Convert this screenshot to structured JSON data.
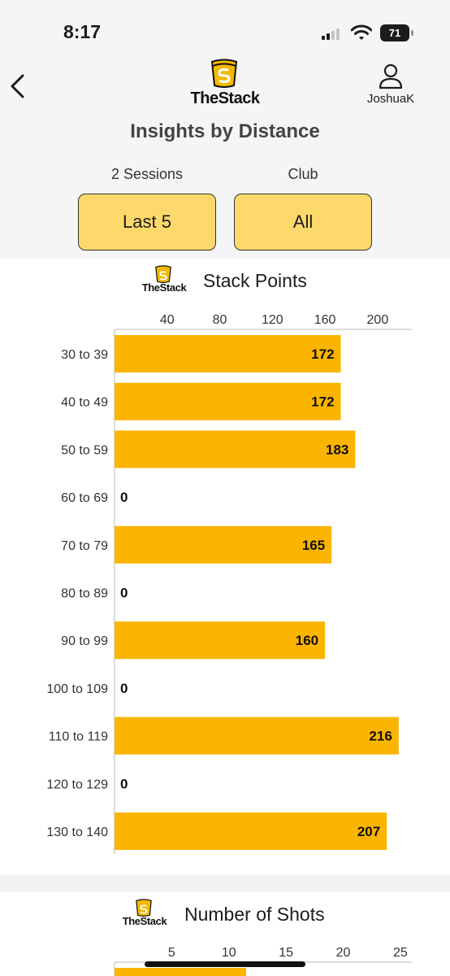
{
  "status_bar": {
    "time": "8:17",
    "battery": "71"
  },
  "header": {
    "app_name": "TheStack",
    "username": "JoshuaK",
    "title": "Insights by Distance"
  },
  "filters": [
    {
      "label": "2 Sessions",
      "value": "Last 5"
    },
    {
      "label": "Club",
      "value": "All"
    }
  ],
  "colors": {
    "bar": "#fbb400",
    "button": "#fcd96a",
    "logo_gold": "#f5b800"
  },
  "icons": [
    "back-chevron-icon",
    "stack-logo-icon",
    "user-icon",
    "signal-icon",
    "wifi-icon",
    "battery-icon"
  ],
  "charts": {
    "points": {
      "logo_text": "TheStack",
      "title": "Stack Points"
    },
    "shots": {
      "logo_text": "TheStack",
      "title": "Number of Shots"
    }
  },
  "chart_data": [
    {
      "type": "bar",
      "orientation": "horizontal",
      "title": "Stack Points",
      "categories": [
        "30 to 39",
        "40 to 49",
        "50 to 59",
        "60 to 69",
        "70 to 79",
        "80 to 89",
        "90 to 99",
        "100 to 109",
        "110 to 119",
        "120 to 129",
        "130 to 140"
      ],
      "values": [
        172,
        172,
        183,
        0,
        165,
        0,
        160,
        0,
        216,
        0,
        207
      ],
      "x_ticks": [
        40,
        80,
        120,
        160,
        200
      ],
      "xlim": [
        0,
        226
      ],
      "axis_position": "top",
      "grid": false
    },
    {
      "type": "bar",
      "orientation": "horizontal",
      "title": "Number of Shots",
      "x_ticks": [
        5,
        10,
        15,
        20,
        25
      ],
      "xlim": [
        0,
        26
      ],
      "axis_position": "top",
      "grid": false
    }
  ]
}
